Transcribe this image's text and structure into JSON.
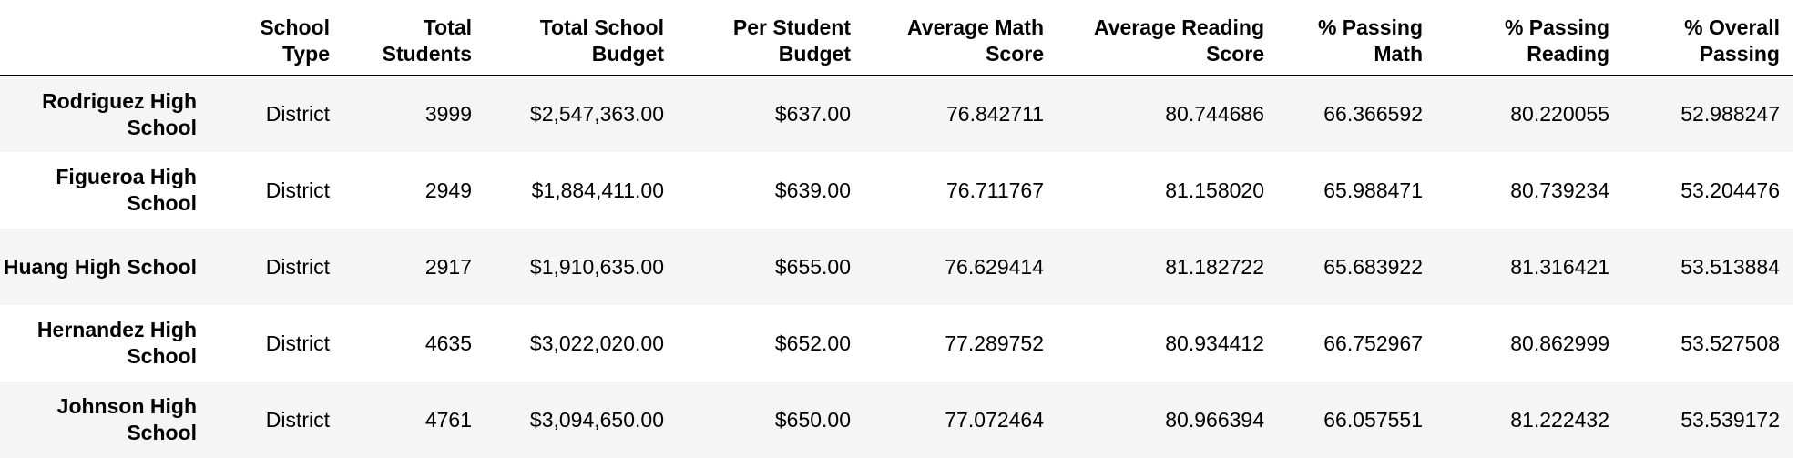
{
  "table": {
    "columns": [
      "",
      "School Type",
      "Total Students",
      "Total School Budget",
      "Per Student Budget",
      "Average Math Score",
      "Average Reading Score",
      "% Passing Math",
      "% Passing Reading",
      "% Overall Passing"
    ],
    "rows": [
      {
        "school": "Rodriguez High School",
        "cells": [
          "District",
          "3999",
          "$2,547,363.00",
          "$637.00",
          "76.842711",
          "80.744686",
          "66.366592",
          "80.220055",
          "52.988247"
        ]
      },
      {
        "school": "Figueroa High School",
        "cells": [
          "District",
          "2949",
          "$1,884,411.00",
          "$639.00",
          "76.711767",
          "81.158020",
          "65.988471",
          "80.739234",
          "53.204476"
        ]
      },
      {
        "school": "Huang High School",
        "cells": [
          "District",
          "2917",
          "$1,910,635.00",
          "$655.00",
          "76.629414",
          "81.182722",
          "65.683922",
          "81.316421",
          "53.513884"
        ]
      },
      {
        "school": "Hernandez High School",
        "cells": [
          "District",
          "4635",
          "$3,022,020.00",
          "$652.00",
          "77.289752",
          "80.934412",
          "66.752967",
          "80.862999",
          "53.527508"
        ]
      },
      {
        "school": "Johnson High School",
        "cells": [
          "District",
          "4761",
          "$3,094,650.00",
          "$650.00",
          "77.072464",
          "80.966394",
          "66.057551",
          "81.222432",
          "53.539172"
        ]
      }
    ]
  },
  "colors": {
    "stripe": "#f5f5f5",
    "background": "#ffffff",
    "text": "#000000",
    "header_rule": "#000000"
  }
}
